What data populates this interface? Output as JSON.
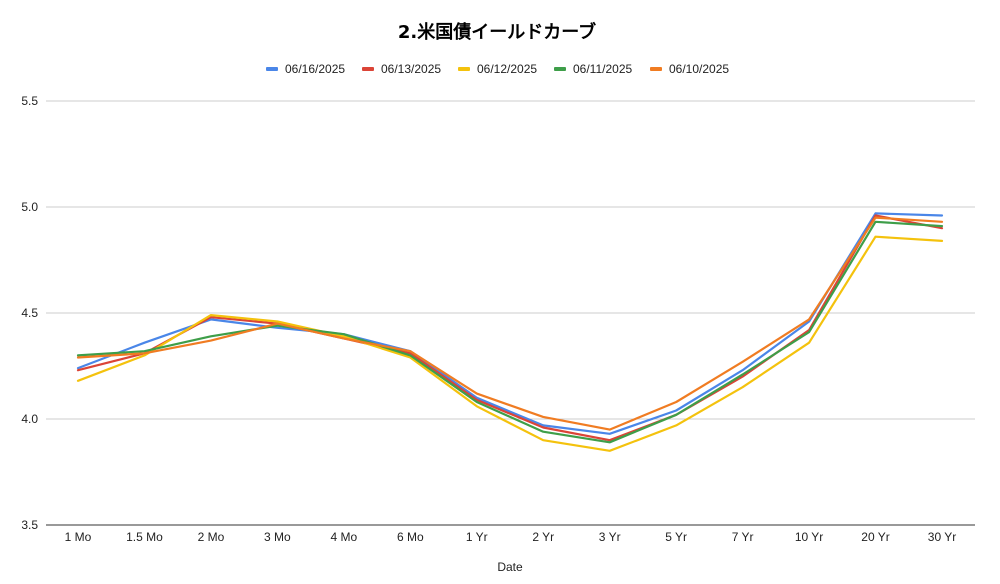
{
  "chart_data": {
    "type": "line",
    "title": "2.米国債イールドカーブ",
    "xlabel": "Date",
    "ylabel": "",
    "categories": [
      "1 Mo",
      "1.5 Mo",
      "2 Mo",
      "3 Mo",
      "4 Mo",
      "6 Mo",
      "1 Yr",
      "2 Yr",
      "3 Yr",
      "5 Yr",
      "7 Yr",
      "10 Yr",
      "20 Yr",
      "30 Yr"
    ],
    "ylim": [
      3.5,
      5.5
    ],
    "yticks": [
      "3.5",
      "4.0",
      "4.5",
      "5.0",
      "5.5"
    ],
    "grid": true,
    "legend_position": "top-center",
    "series": [
      {
        "name": "06/16/2025",
        "color": "#4a86e8",
        "values": [
          4.24,
          4.36,
          4.47,
          4.43,
          4.4,
          4.32,
          4.1,
          3.97,
          3.93,
          4.04,
          4.23,
          4.46,
          4.97,
          4.96
        ]
      },
      {
        "name": "06/13/2025",
        "color": "#db4437",
        "values": [
          4.23,
          4.31,
          4.48,
          4.45,
          4.38,
          4.31,
          4.09,
          3.96,
          3.9,
          4.02,
          4.2,
          4.42,
          4.96,
          4.9
        ]
      },
      {
        "name": "06/12/2025",
        "color": "#f4c20d",
        "values": [
          4.18,
          4.3,
          4.49,
          4.46,
          4.39,
          4.29,
          4.06,
          3.9,
          3.85,
          3.97,
          4.15,
          4.36,
          4.86,
          4.84
        ]
      },
      {
        "name": "06/11/2025",
        "color": "#3e9e49",
        "values": [
          4.3,
          4.32,
          4.39,
          4.44,
          4.4,
          4.3,
          4.08,
          3.94,
          3.89,
          4.02,
          4.21,
          4.41,
          4.93,
          4.91
        ]
      },
      {
        "name": "06/10/2025",
        "color": "#f07c22",
        "values": [
          4.29,
          4.31,
          4.37,
          4.45,
          4.38,
          4.32,
          4.12,
          4.01,
          3.95,
          4.08,
          4.27,
          4.47,
          4.95,
          4.93
        ]
      }
    ]
  }
}
